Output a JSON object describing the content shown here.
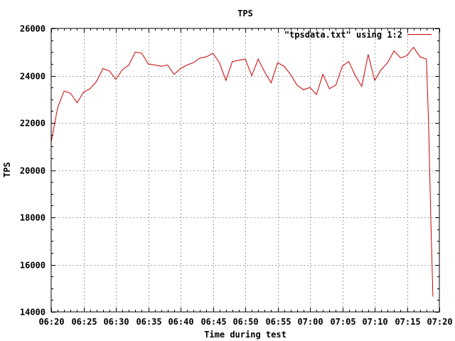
{
  "chart_data": {
    "type": "line",
    "title": "TPS",
    "xlabel": "Time during test",
    "ylabel": "TPS",
    "xlim": [
      "06:20",
      "07:20"
    ],
    "ylim": [
      14000,
      26000
    ],
    "x_ticks": [
      "06:20",
      "06:25",
      "06:30",
      "06:35",
      "06:40",
      "06:45",
      "06:50",
      "06:55",
      "07:00",
      "07:05",
      "07:10",
      "07:15",
      "07:20"
    ],
    "y_ticks": [
      14000,
      16000,
      18000,
      20000,
      22000,
      24000,
      26000
    ],
    "grid": true,
    "legend_position": "top-right",
    "line_color": "#cc0000",
    "series": [
      {
        "name": "\"tpsdata.txt\" using 1:2",
        "points": [
          [
            "06:20",
            21200
          ],
          [
            "06:21",
            22650
          ],
          [
            "06:22",
            23350
          ],
          [
            "06:23",
            23250
          ],
          [
            "06:24",
            22850
          ],
          [
            "06:25",
            23300
          ],
          [
            "06:26",
            23450
          ],
          [
            "06:27",
            23750
          ],
          [
            "06:28",
            24300
          ],
          [
            "06:29",
            24200
          ],
          [
            "06:30",
            23850
          ],
          [
            "06:31",
            24250
          ],
          [
            "06:32",
            24450
          ],
          [
            "06:33",
            25000
          ],
          [
            "06:34",
            24950
          ],
          [
            "06:35",
            24500
          ],
          [
            "06:36",
            24450
          ],
          [
            "06:37",
            24400
          ],
          [
            "06:38",
            24450
          ],
          [
            "06:39",
            24050
          ],
          [
            "06:40",
            24300
          ],
          [
            "06:41",
            24450
          ],
          [
            "06:42",
            24550
          ],
          [
            "06:43",
            24750
          ],
          [
            "06:44",
            24800
          ],
          [
            "06:45",
            24950
          ],
          [
            "06:46",
            24550
          ],
          [
            "06:47",
            23800
          ],
          [
            "06:48",
            24600
          ],
          [
            "06:49",
            24650
          ],
          [
            "06:50",
            24700
          ],
          [
            "06:51",
            24000
          ],
          [
            "06:52",
            24700
          ],
          [
            "06:53",
            24150
          ],
          [
            "06:54",
            23700
          ],
          [
            "06:55",
            24550
          ],
          [
            "06:56",
            24400
          ],
          [
            "06:57",
            24050
          ],
          [
            "06:58",
            23600
          ],
          [
            "06:59",
            23400
          ],
          [
            "07:00",
            23500
          ],
          [
            "07:01",
            23200
          ],
          [
            "07:02",
            24050
          ],
          [
            "07:03",
            23450
          ],
          [
            "07:04",
            23600
          ],
          [
            "07:05",
            24400
          ],
          [
            "07:06",
            24600
          ],
          [
            "07:07",
            24000
          ],
          [
            "07:08",
            23550
          ],
          [
            "07:09",
            24900
          ],
          [
            "07:10",
            23800
          ],
          [
            "07:11",
            24250
          ],
          [
            "07:12",
            24550
          ],
          [
            "07:13",
            25050
          ],
          [
            "07:14",
            24750
          ],
          [
            "07:15",
            24850
          ],
          [
            "07:16",
            25200
          ],
          [
            "07:17",
            24800
          ],
          [
            "07:18",
            24700
          ],
          [
            "07:18:20",
            22000
          ],
          [
            "07:18:40",
            18000
          ],
          [
            "07:19",
            14650
          ]
        ]
      }
    ]
  }
}
